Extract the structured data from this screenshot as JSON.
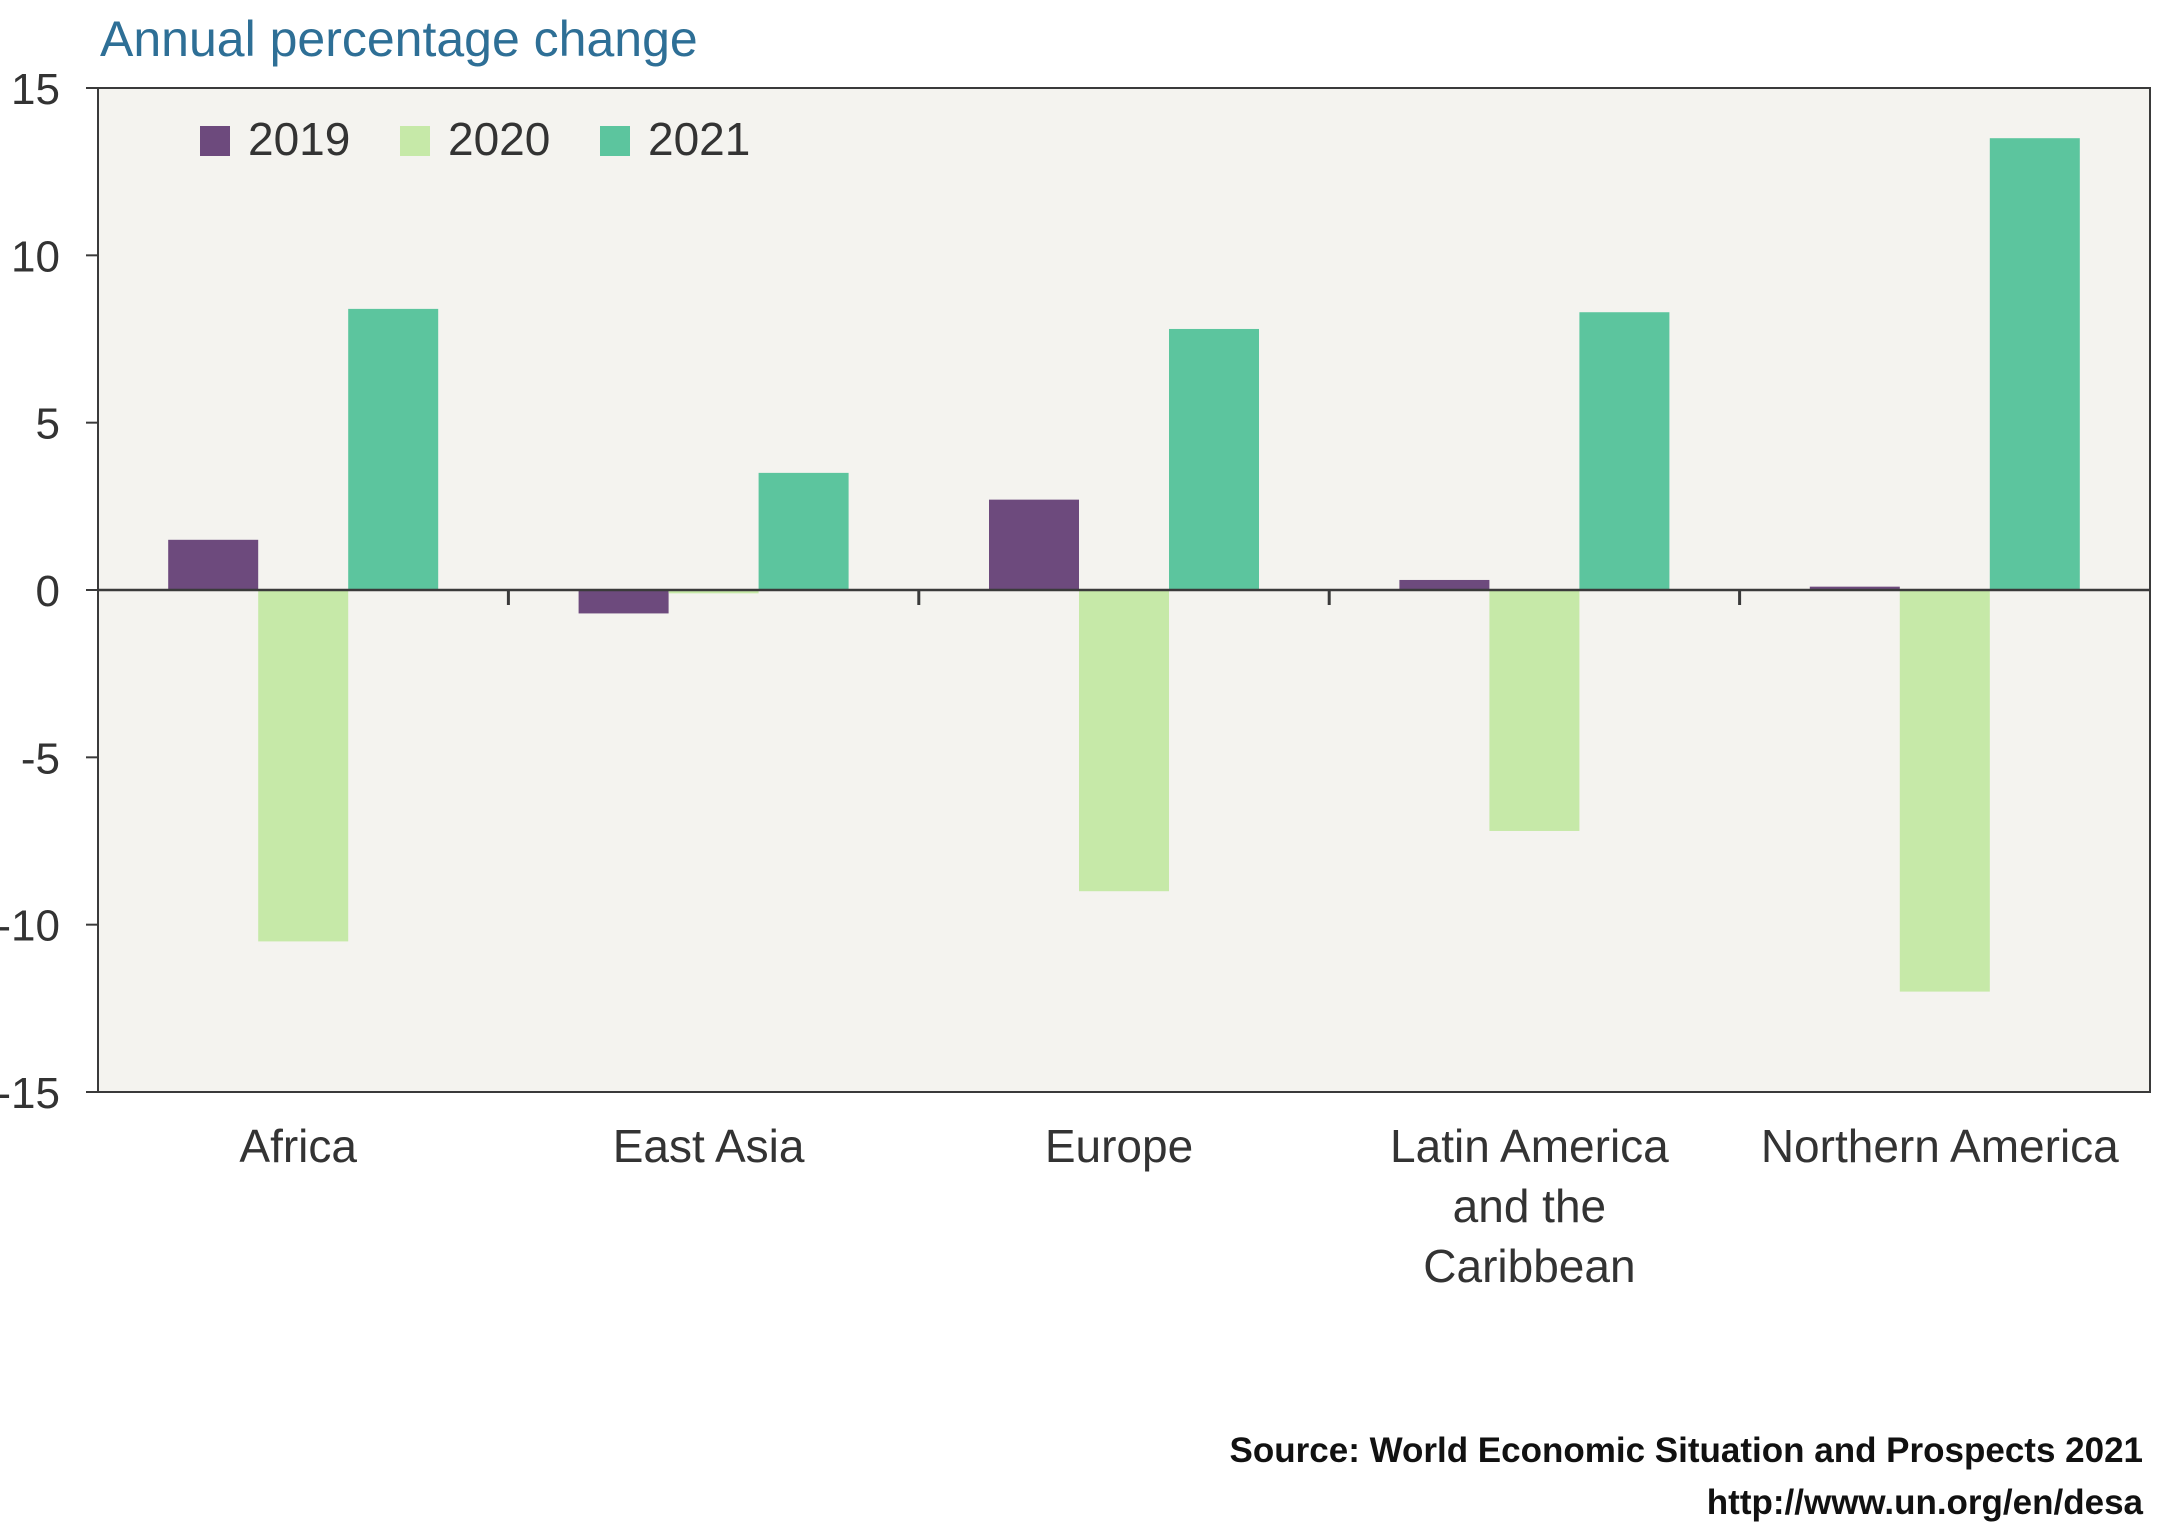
{
  "chart_data": {
    "type": "bar",
    "ylabel": "Annual percentage change",
    "categories": [
      [
        "Africa"
      ],
      [
        "East Asia"
      ],
      [
        "Europe"
      ],
      [
        "Latin America",
        "and the",
        "Caribbean"
      ],
      [
        "Northern America"
      ]
    ],
    "series": [
      {
        "name": "2019",
        "color": "#6d4a7d",
        "values": [
          1.5,
          -0.7,
          2.7,
          0.3,
          0.1
        ]
      },
      {
        "name": "2020",
        "color": "#c6e9a8",
        "values": [
          -10.5,
          -0.1,
          -9.0,
          -7.2,
          -12.0
        ]
      },
      {
        "name": "2021",
        "color": "#5cc59e",
        "values": [
          8.4,
          3.5,
          7.8,
          8.3,
          13.5
        ]
      }
    ],
    "ylim": [
      -15,
      15
    ],
    "yticks": [
      15,
      10,
      5,
      0,
      -5,
      -10,
      -15
    ],
    "ytick_labels": [
      "15",
      "10",
      "5",
      "0",
      "-5",
      "-10",
      "-15"
    ],
    "legend_position": "top-left",
    "grid": false,
    "plot_background": "#f4f3ef"
  },
  "source": {
    "line1": "Source:  World Economic Situation and Prospects 2021",
    "line2": "http://www.un.org/en/desa"
  }
}
